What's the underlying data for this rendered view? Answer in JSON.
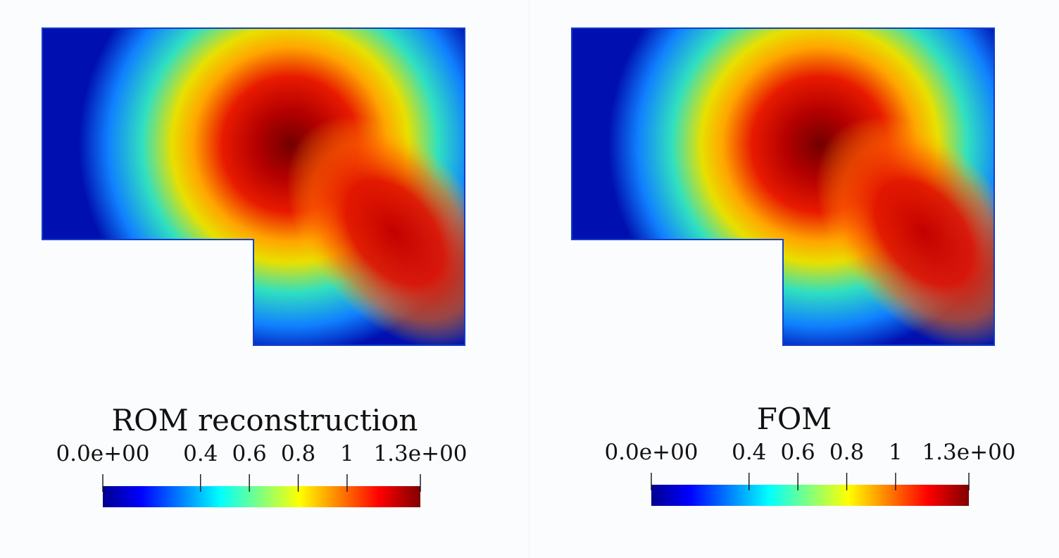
{
  "chart_data": [
    {
      "type": "heatmap",
      "title": "ROM reconstruction",
      "colorbar": {
        "range": [
          0,
          1.3
        ],
        "tick_values": [
          0,
          0.4,
          0.6,
          0.8,
          1,
          1.3
        ],
        "tick_labels": [
          "0.0e+00",
          "0.4",
          "0.6",
          "0.8",
          "1",
          "1.3e+00"
        ],
        "colormap": [
          "#00008f",
          "#0000ff",
          "#00ffff",
          "#ffff00",
          "#ff0000",
          "#800000"
        ]
      },
      "domain": "L-shaped",
      "field_peak_value": 1.3,
      "legend_position": "bottom"
    },
    {
      "type": "heatmap",
      "title": "FOM",
      "colorbar": {
        "range": [
          0,
          1.3
        ],
        "tick_values": [
          0,
          0.4,
          0.6,
          0.8,
          1,
          1.3
        ],
        "tick_labels": [
          "0.0e+00",
          "0.4",
          "0.6",
          "0.8",
          "1",
          "1.3e+00"
        ],
        "colormap": [
          "#00008f",
          "#0000ff",
          "#00ffff",
          "#ffff00",
          "#ff0000",
          "#800000"
        ]
      },
      "domain": "L-shaped",
      "field_peak_value": 1.3,
      "legend_position": "bottom"
    }
  ]
}
